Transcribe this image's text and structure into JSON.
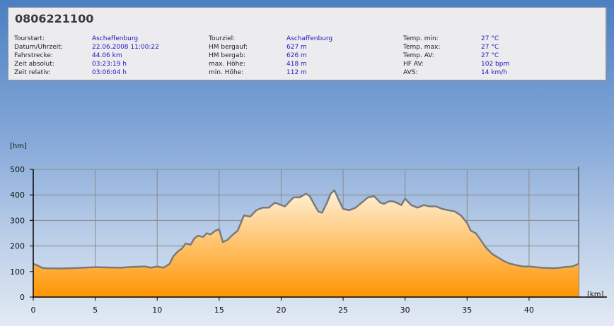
{
  "header": {
    "title": "0806221100",
    "columns": [
      [
        {
          "label": "Tourstart:",
          "value": "Aschaffenburg"
        },
        {
          "label": "Datum/Uhrzeit:",
          "value": "22.06.2008 11:00:22"
        },
        {
          "label": "Fahrstrecke:",
          "value": "44.06 km"
        },
        {
          "label": "Zeit absolut:",
          "value": "03:23:19 h"
        },
        {
          "label": "Zeit relativ:",
          "value": "03:06:04 h"
        }
      ],
      [
        {
          "label": "Tourziel:",
          "value": "Aschaffenburg"
        },
        {
          "label": "HM bergauf:",
          "value": "627 m"
        },
        {
          "label": "HM bergab:",
          "value": "626 m"
        },
        {
          "label": "max. Höhe:",
          "value": "418 m"
        },
        {
          "label": "min. Höhe:",
          "value": "112 m"
        }
      ],
      [
        {
          "label": "Temp. min:",
          "value": "27 °C"
        },
        {
          "label": "Temp. max:",
          "value": "27 °C"
        },
        {
          "label": "Temp. AV:",
          "value": "27 °C"
        },
        {
          "label": "HF AV:",
          "value": "102 bpm"
        },
        {
          "label": "AVS:",
          "value": "14 km/h"
        }
      ]
    ]
  },
  "chart_data": {
    "type": "area",
    "ylabel": "[hm]",
    "xlabel": "[km]",
    "xlim": [
      0,
      44
    ],
    "ylim": [
      0,
      500
    ],
    "xticks": [
      0,
      5,
      10,
      15,
      20,
      25,
      30,
      35,
      40
    ],
    "yticks": [
      0,
      100,
      200,
      300,
      400,
      500
    ],
    "grid": true,
    "colors": {
      "line": "#7a7a7a",
      "fill_top": "#fff1d8",
      "fill_bottom": "#ff9400",
      "grid": "#8a8a8a"
    },
    "x": [
      0,
      0.3,
      0.7,
      1,
      2,
      3,
      4,
      5,
      6,
      7,
      8,
      9,
      9.5,
      10,
      10.5,
      11,
      11.3,
      11.7,
      12,
      12.3,
      12.7,
      13,
      13.3,
      13.7,
      14,
      14.3,
      14.7,
      15,
      15.3,
      15.7,
      16,
      16.5,
      17,
      17.5,
      18,
      18.5,
      19,
      19.5,
      20,
      20.3,
      20.7,
      21,
      21.5,
      22,
      22.3,
      22.7,
      23,
      23.3,
      23.7,
      24,
      24.3,
      24.7,
      25,
      25.5,
      26,
      26.5,
      27,
      27.5,
      28,
      28.3,
      28.7,
      29,
      29.3,
      29.7,
      30,
      30.5,
      31,
      31.5,
      32,
      32.5,
      33,
      33.5,
      34,
      34.5,
      35,
      35.3,
      35.7,
      36,
      36.5,
      37,
      37.5,
      38,
      38.5,
      39,
      39.5,
      40,
      41,
      42,
      42.5,
      43,
      43.5,
      44
    ],
    "values": [
      130,
      125,
      115,
      113,
      112,
      113,
      115,
      117,
      116,
      115,
      118,
      120,
      115,
      120,
      115,
      130,
      160,
      180,
      190,
      210,
      205,
      230,
      240,
      235,
      250,
      245,
      260,
      265,
      215,
      225,
      240,
      260,
      320,
      315,
      340,
      350,
      350,
      370,
      360,
      355,
      375,
      390,
      390,
      405,
      395,
      360,
      335,
      330,
      370,
      405,
      418,
      375,
      345,
      340,
      350,
      370,
      390,
      395,
      370,
      365,
      375,
      375,
      370,
      360,
      385,
      360,
      350,
      360,
      355,
      355,
      345,
      340,
      335,
      320,
      290,
      260,
      250,
      230,
      195,
      170,
      155,
      140,
      130,
      125,
      120,
      120,
      115,
      113,
      115,
      118,
      120,
      130
    ]
  }
}
